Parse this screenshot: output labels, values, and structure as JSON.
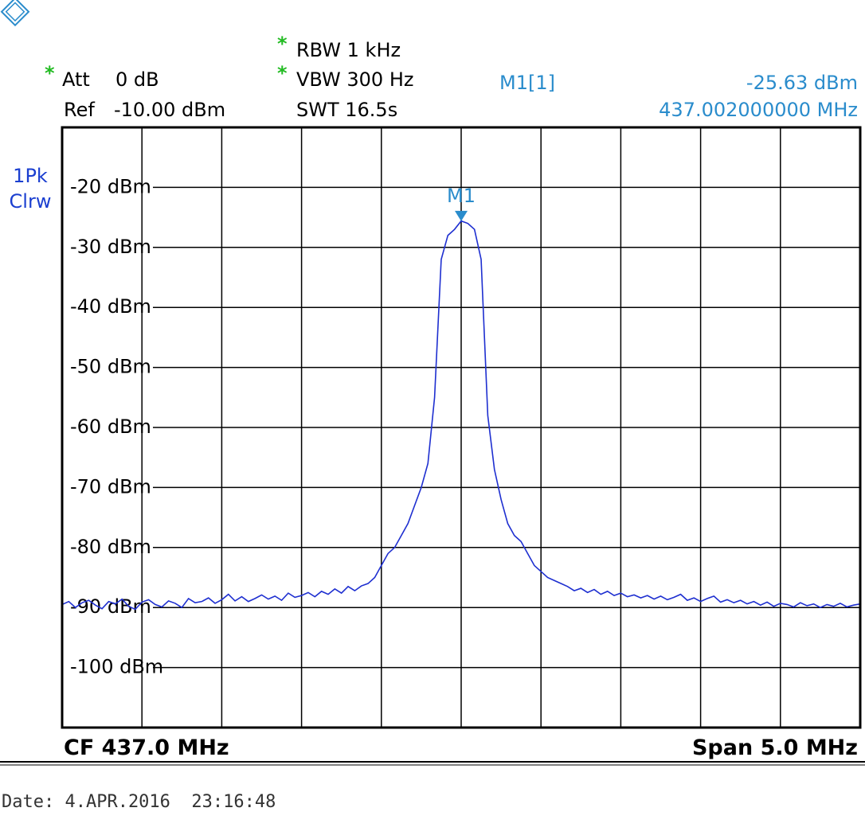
{
  "chart_data": {
    "type": "line",
    "header": {
      "att_flag": "*",
      "att_label": "Att",
      "att": "0 dB",
      "ref_label": "Ref",
      "ref": "-10.00 dBm",
      "rbw_flag": "*",
      "rbw": "RBW 1 kHz",
      "vbw_flag": "*",
      "vbw": "VBW 300 Hz",
      "swt": "SWT 16.5s"
    },
    "trace_label": [
      "1Pk",
      "Clrw"
    ],
    "marker": {
      "name": "M1",
      "readout": "M1[1]",
      "value": -25.63,
      "value_label": "-25.63 dBm",
      "frequency": "437.002000000 MHz"
    },
    "center": "CF 437.0 MHz",
    "span": "Span 5.0 MHz",
    "date": "Date: 4.APR.2016  23:16:48",
    "color": "#1e2fd0",
    "values": [
      -89.5,
      -89,
      -90,
      -89.2,
      -88.8,
      -89.6,
      -90.2,
      -89,
      -89.4,
      -88.6,
      -89.8,
      -90.3,
      -89.1,
      -88.7,
      -89.5,
      -89.9,
      -88.9,
      -89.3,
      -90,
      -88.5,
      -89.2,
      -89,
      -88.4,
      -89.3,
      -88.7,
      -87.8,
      -88.9,
      -88.2,
      -89,
      -88.5,
      -87.9,
      -88.6,
      -88.1,
      -88.8,
      -87.6,
      -88.3,
      -88,
      -87.5,
      -88.2,
      -87.3,
      -87.8,
      -86.9,
      -87.6,
      -86.5,
      -87.2,
      -86.4,
      -86,
      -85,
      -83,
      -81,
      -80,
      -78,
      -76,
      -73,
      -70,
      -66,
      -55,
      -32,
      -28,
      -27,
      -25.6,
      -26,
      -27,
      -32,
      -58,
      -67,
      -72,
      -76,
      -78,
      -79,
      -81,
      -83,
      -84,
      -85,
      -85.5,
      -86,
      -86.5,
      -87.2,
      -86.8,
      -87.5,
      -87,
      -87.8,
      -87.3,
      -88,
      -87.6,
      -88.2,
      -87.9,
      -88.4,
      -88,
      -88.6,
      -88.1,
      -88.7,
      -88.3,
      -87.8,
      -88.8,
      -88.4,
      -89,
      -88.5,
      -88.1,
      -89.1,
      -88.7,
      -89.2,
      -88.8,
      -89.4,
      -89,
      -89.6,
      -89.1,
      -89.8,
      -89.3,
      -89.5,
      -89.9,
      -89.2,
      -89.7,
      -89.4,
      -90,
      -89.5,
      -89.8,
      -89.3,
      -89.9,
      -89.6,
      -89.4
    ],
    "ylim": [
      -110,
      -10
    ],
    "yticks": [
      {
        "value": -20,
        "label": "-20 dBm"
      },
      {
        "value": -30,
        "label": "-30 dBm"
      },
      {
        "value": -40,
        "label": "-40 dBm"
      },
      {
        "value": -50,
        "label": "-50 dBm"
      },
      {
        "value": -60,
        "label": "-60 dBm"
      },
      {
        "value": -70,
        "label": "-70 dBm"
      },
      {
        "value": -80,
        "label": "-80 dBm"
      },
      {
        "value": -90,
        "label": "-90 dBm"
      },
      {
        "value": -100,
        "label": "-100 dBm"
      }
    ],
    "grid": true
  }
}
